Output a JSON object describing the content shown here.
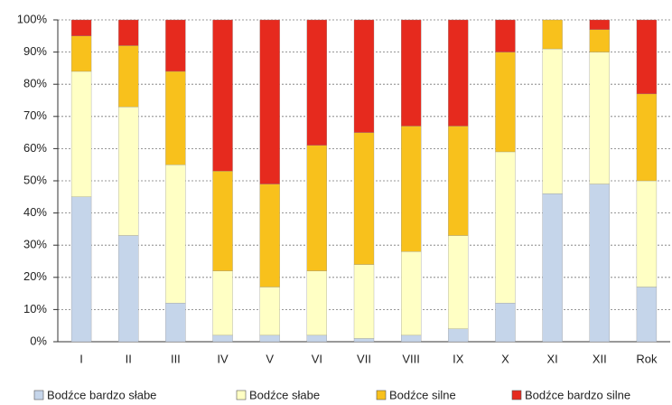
{
  "chart_data": {
    "type": "stacked_bar",
    "categories": [
      "I",
      "II",
      "III",
      "IV",
      "V",
      "VI",
      "VII",
      "VIII",
      "IX",
      "X",
      "XI",
      "XII",
      "Rok"
    ],
    "series": [
      {
        "name": "Bodźce bardzo słabe",
        "color": "#c5d5ea",
        "values": [
          45,
          33,
          12,
          2,
          2,
          2,
          1,
          2,
          4,
          12,
          46,
          49,
          17
        ]
      },
      {
        "name": "Bodźce słabe",
        "color": "#ffffc4",
        "values": [
          39,
          40,
          43,
          20,
          15,
          20,
          23,
          26,
          29,
          47,
          45,
          41,
          33
        ]
      },
      {
        "name": "Bodźce silne",
        "color": "#f8c11c",
        "values": [
          11,
          19,
          29,
          31,
          32,
          39,
          41,
          39,
          34,
          31,
          9,
          7,
          27
        ]
      },
      {
        "name": "Bodźce bardzo silne",
        "color": "#e62a1e",
        "values": [
          5,
          8,
          16,
          47,
          51,
          39,
          35,
          33,
          33,
          10,
          0,
          3,
          23
        ]
      }
    ],
    "ylim": [
      0,
      100
    ],
    "yticks": [
      {
        "value": 0,
        "label": "0%"
      },
      {
        "value": 10,
        "label": "10%"
      },
      {
        "value": 20,
        "label": "20%"
      },
      {
        "value": 30,
        "label": "30%"
      },
      {
        "value": 40,
        "label": "40%"
      },
      {
        "value": 50,
        "label": "50%"
      },
      {
        "value": 60,
        "label": "60%"
      },
      {
        "value": 70,
        "label": "70%"
      },
      {
        "value": 80,
        "label": "80%"
      },
      {
        "value": 90,
        "label": "90%"
      },
      {
        "value": 100,
        "label": "100%"
      }
    ],
    "grid": true
  }
}
